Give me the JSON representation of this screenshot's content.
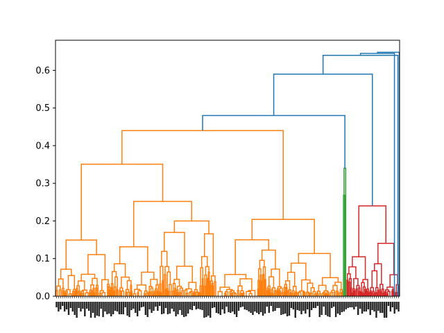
{
  "chart_data": {
    "type": "dendrogram",
    "title": "",
    "xlabel": "",
    "ylabel": "",
    "ylim": [
      0,
      0.68
    ],
    "y_ticks": [
      0.0,
      0.1,
      0.2,
      0.3,
      0.4,
      0.5,
      0.6
    ],
    "y_tick_labels": [
      "0.0",
      "0.1",
      "0.2",
      "0.3",
      "0.4",
      "0.5",
      "0.6"
    ],
    "grid": false,
    "leaf_labels": "dense unreadable leaf index labels",
    "colors": {
      "orange": "#ff7f0e",
      "green": "#2ca02c",
      "red": "#d62728",
      "blue": "#1f77b4"
    },
    "clusters": [
      {
        "color": "orange",
        "leaf_span": [
          0.0,
          0.835
        ],
        "merge_height": 0.44
      },
      {
        "color": "green",
        "leaf_span": [
          0.835,
          0.845
        ],
        "merge_height": 0.34
      },
      {
        "color": "red",
        "leaf_span": [
          0.845,
          1.0
        ],
        "merge_height": 0.24
      }
    ],
    "top_links": [
      {
        "color": "blue",
        "height": 0.48,
        "joins": [
          "orange",
          "green"
        ]
      },
      {
        "color": "blue",
        "height": 0.59,
        "joins": [
          "orange+green",
          "red"
        ]
      },
      {
        "color": "blue",
        "height": 0.64
      },
      {
        "color": "blue",
        "height": 0.645
      },
      {
        "color": "blue",
        "height": 0.648
      }
    ]
  }
}
